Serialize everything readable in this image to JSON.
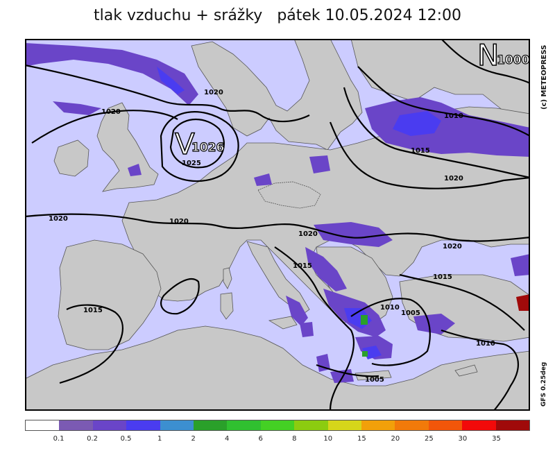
{
  "header": {
    "title": "tlak vzduchu + srážky",
    "date": "pátek 10.05.2024 12:00"
  },
  "side_labels": {
    "copyright": "(c) METEOPRESS",
    "model": "GFS 0.25deg"
  },
  "pressure_centers": [
    {
      "letter": "V",
      "value": "1026",
      "kind": "high"
    },
    {
      "letter": "N",
      "value": "1000",
      "kind": "low"
    }
  ],
  "isobar_labels": [
    "1020",
    "1020",
    "1025",
    "1020",
    "1020",
    "1020",
    "1010",
    "1015",
    "1020",
    "1020",
    "1015",
    "1015",
    "1015",
    "1010",
    "1005",
    "1010",
    "1005"
  ],
  "legend": {
    "colors": [
      "#ffffff",
      "#7b5ab3",
      "#6a45c8",
      "#4a3cf0",
      "#3c8fd0",
      "#2aa02a",
      "#30c030",
      "#44d024",
      "#8ccc10",
      "#d6d61a",
      "#f2a00a",
      "#f27a0a",
      "#f2560a",
      "#f20a0a",
      "#a00a0a"
    ],
    "labels": [
      "0.1",
      "0.2",
      "0.5",
      "1",
      "2",
      "4",
      "6",
      "8",
      "10",
      "15",
      "20",
      "25",
      "30",
      "35"
    ]
  },
  "colors": {
    "sea": "#ccccff",
    "land": "#c8c8c8",
    "precip_light": "#6a45c8",
    "precip_med": "#4a3cf0",
    "precip_heavy": "#2aa02a"
  }
}
